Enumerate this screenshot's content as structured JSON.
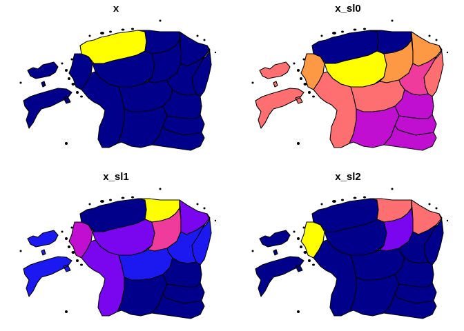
{
  "colors": {
    "navy": "#00008b",
    "blue": "#1c18f0",
    "violet": "#7a06f0",
    "magenta": "#c00fd0",
    "pink": "#ef3c9c",
    "salmon": "#fd6f70",
    "orange": "#fd9944",
    "yellow": "#ffff00"
  },
  "panels": [
    {
      "title": "x",
      "fills": {
        "hiiumaa": "navy",
        "saaremaa": "navy",
        "laane": "navy",
        "harju_w": "yellow",
        "harju_e": "navy",
        "raplamaa": "navy",
        "parnu": "navy",
        "jarva": "navy",
        "laane_viru": "navy",
        "ida_viru": "navy",
        "jogeva": "navy",
        "viljandi": "navy",
        "tartu": "navy",
        "valga": "navy",
        "polva": "navy",
        "voru": "navy"
      }
    },
    {
      "title": "x_sl0",
      "fills": {
        "hiiumaa": "salmon",
        "saaremaa": "salmon",
        "laane": "orange",
        "harju_w": "navy",
        "harju_e": "navy",
        "raplamaa": "yellow",
        "parnu": "salmon",
        "jarva": "orange",
        "laane_viru": "orange",
        "ida_viru": "salmon",
        "jogeva": "pink",
        "viljandi": "salmon",
        "tartu": "magenta",
        "valga": "magenta",
        "polva": "magenta",
        "voru": "magenta"
      }
    },
    {
      "title": "x_sl1",
      "fills": {
        "hiiumaa": "blue",
        "saaremaa": "blue",
        "laane": "magenta",
        "harju_w": "navy",
        "harju_e": "yellow",
        "raplamaa": "violet",
        "parnu": "violet",
        "jarva": "pink",
        "laane_viru": "violet",
        "ida_viru": "blue",
        "jogeva": "blue",
        "viljandi": "blue",
        "tartu": "navy",
        "valga": "navy",
        "polva": "navy",
        "voru": "navy"
      }
    },
    {
      "title": "x_sl2",
      "fills": {
        "hiiumaa": "navy",
        "saaremaa": "navy",
        "laane": "yellow",
        "harju_w": "navy",
        "harju_e": "salmon",
        "raplamaa": "navy",
        "parnu": "navy",
        "jarva": "violet",
        "laane_viru": "salmon",
        "ida_viru": "navy",
        "jogeva": "navy",
        "viljandi": "navy",
        "tartu": "navy",
        "valga": "navy",
        "polva": "navy",
        "voru": "navy"
      }
    }
  ]
}
